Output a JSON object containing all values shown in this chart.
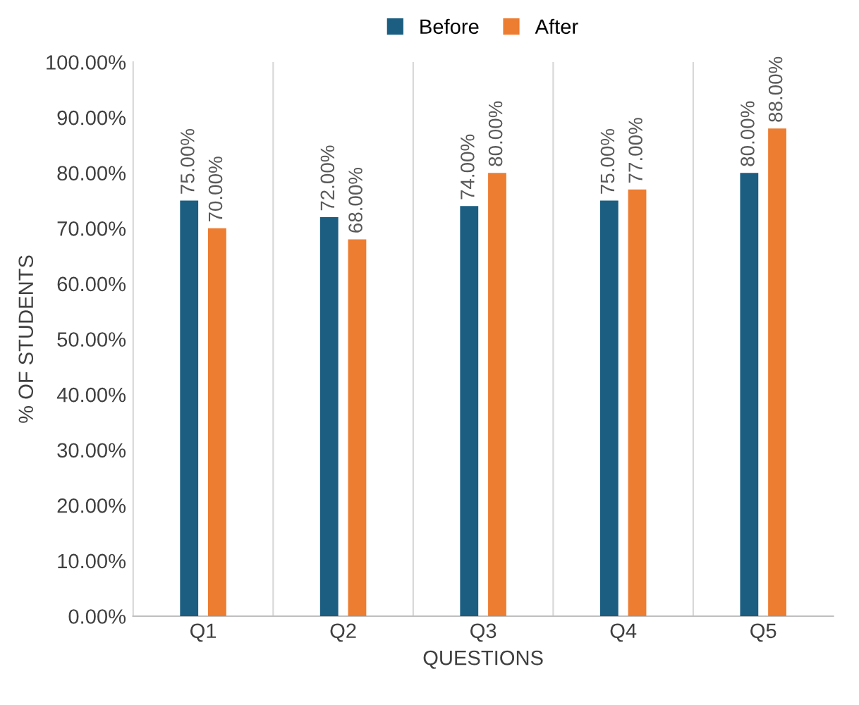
{
  "chart_data": {
    "type": "bar",
    "xlabel": "QUESTIONS",
    "ylabel": "% OF STUDENTS",
    "categories": [
      "Q1",
      "Q2",
      "Q3",
      "Q4",
      "Q5"
    ],
    "series": [
      {
        "name": "Before",
        "color": "#1b5e82",
        "values": [
          75,
          72,
          74,
          75,
          80
        ],
        "value_labels": [
          "75.00%",
          "72.00%",
          "74.00%",
          "75.00%",
          "80.00%"
        ]
      },
      {
        "name": "After",
        "color": "#ed7d31",
        "values": [
          70,
          68,
          80,
          77,
          88
        ],
        "value_labels": [
          "70.00%",
          "68.00%",
          "80.00%",
          "77.00%",
          "88.00%"
        ]
      }
    ],
    "ylim": [
      0,
      100
    ],
    "yticks": [
      {
        "value": 0,
        "label": "0.00%"
      },
      {
        "value": 10,
        "label": "10.00%"
      },
      {
        "value": 20,
        "label": "20.00%"
      },
      {
        "value": 30,
        "label": "30.00%"
      },
      {
        "value": 40,
        "label": "40.00%"
      },
      {
        "value": 50,
        "label": "50.00%"
      },
      {
        "value": 60,
        "label": "60.00%"
      },
      {
        "value": 70,
        "label": "70.00%"
      },
      {
        "value": 80,
        "label": "80.00%"
      },
      {
        "value": 90,
        "label": "90.00%"
      },
      {
        "value": 100,
        "label": "100.00%"
      }
    ],
    "grid": "x",
    "legend": "top"
  }
}
